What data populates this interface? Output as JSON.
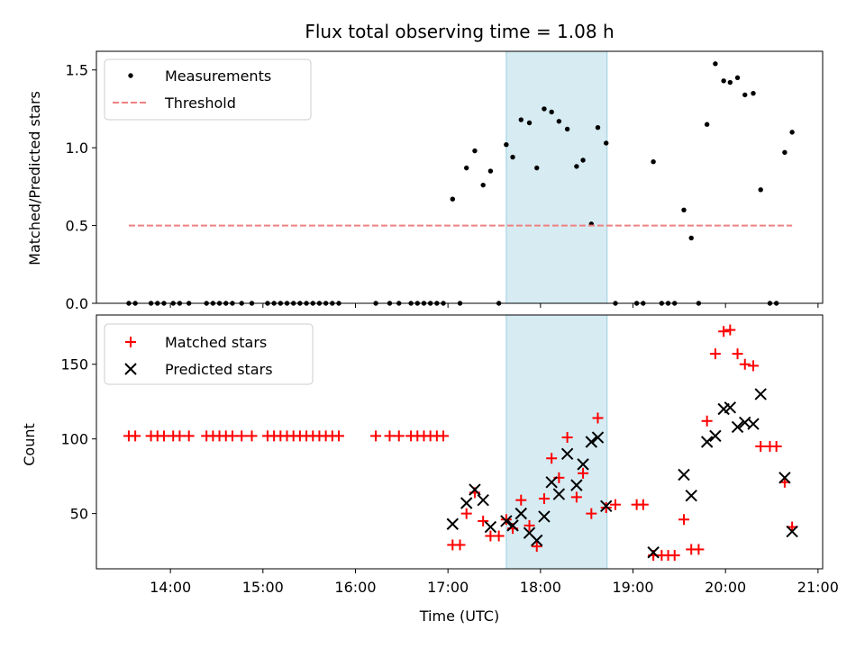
{
  "chart_data": [
    {
      "type": "scatter",
      "title": "Flux total observing time = 1.08 h",
      "xlabel": "",
      "ylabel": "Matched/Predicted stars",
      "xlim": [
        13.2,
        21.05
      ],
      "ylim": [
        0,
        1.62
      ],
      "yticks": [
        "0.0",
        "0.5",
        "1.0",
        "1.5"
      ],
      "shaded_interval": [
        17.63,
        18.72
      ],
      "legend_position": "upper-left",
      "series": [
        {
          "name": "Measurements",
          "marker": "dot",
          "color": "#000000",
          "points": [
            [
              13.55,
              0
            ],
            [
              13.62,
              0
            ],
            [
              13.79,
              0
            ],
            [
              13.86,
              0
            ],
            [
              13.93,
              0
            ],
            [
              14.03,
              0
            ],
            [
              14.1,
              0
            ],
            [
              14.2,
              0
            ],
            [
              14.39,
              0
            ],
            [
              14.46,
              0
            ],
            [
              14.53,
              0
            ],
            [
              14.6,
              0
            ],
            [
              14.67,
              0
            ],
            [
              14.77,
              0
            ],
            [
              14.88,
              0
            ],
            [
              15.05,
              0
            ],
            [
              15.12,
              0
            ],
            [
              15.19,
              0
            ],
            [
              15.26,
              0
            ],
            [
              15.33,
              0
            ],
            [
              15.4,
              0
            ],
            [
              15.47,
              0
            ],
            [
              15.54,
              0
            ],
            [
              15.61,
              0
            ],
            [
              15.68,
              0
            ],
            [
              15.75,
              0
            ],
            [
              15.82,
              0
            ],
            [
              16.22,
              0
            ],
            [
              16.37,
              0
            ],
            [
              16.47,
              0
            ],
            [
              16.6,
              0
            ],
            [
              16.67,
              0
            ],
            [
              16.74,
              0
            ],
            [
              16.81,
              0
            ],
            [
              16.88,
              0
            ],
            [
              16.95,
              0
            ],
            [
              17.13,
              0
            ],
            [
              17.55,
              0
            ],
            [
              18.81,
              0
            ],
            [
              19.04,
              0
            ],
            [
              19.11,
              0
            ],
            [
              19.31,
              0
            ],
            [
              19.38,
              0
            ],
            [
              19.45,
              0
            ],
            [
              19.71,
              0
            ],
            [
              20.48,
              0
            ],
            [
              20.55,
              0
            ],
            [
              17.05,
              0.67
            ],
            [
              17.2,
              0.87
            ],
            [
              17.29,
              0.98
            ],
            [
              17.38,
              0.76
            ],
            [
              17.46,
              0.85
            ],
            [
              17.63,
              1.02
            ],
            [
              17.7,
              0.94
            ],
            [
              17.79,
              1.18
            ],
            [
              17.88,
              1.16
            ],
            [
              17.96,
              0.87
            ],
            [
              18.04,
              1.25
            ],
            [
              18.12,
              1.23
            ],
            [
              18.2,
              1.17
            ],
            [
              18.29,
              1.12
            ],
            [
              18.39,
              0.88
            ],
            [
              18.46,
              0.92
            ],
            [
              18.55,
              0.51
            ],
            [
              18.62,
              1.13
            ],
            [
              18.71,
              1.03
            ],
            [
              19.22,
              0.91
            ],
            [
              19.55,
              0.6
            ],
            [
              19.63,
              0.42
            ],
            [
              19.8,
              1.15
            ],
            [
              19.89,
              1.54
            ],
            [
              19.98,
              1.43
            ],
            [
              20.05,
              1.42
            ],
            [
              20.13,
              1.45
            ],
            [
              20.21,
              1.34
            ],
            [
              20.3,
              1.35
            ],
            [
              20.38,
              0.73
            ],
            [
              20.64,
              0.97
            ],
            [
              20.72,
              1.1
            ]
          ]
        },
        {
          "name": "Threshold",
          "marker": "dashed-line",
          "color": "#f08080",
          "points": [
            [
              13.55,
              0.5
            ],
            [
              20.72,
              0.5
            ]
          ]
        }
      ]
    },
    {
      "type": "scatter",
      "title": "",
      "xlabel": "Time (UTC)",
      "ylabel": "Count",
      "xlim": [
        13.2,
        21.05
      ],
      "ylim": [
        13,
        183
      ],
      "yticks": [
        "50",
        "100",
        "150"
      ],
      "xticks": [
        "14:00",
        "15:00",
        "16:00",
        "17:00",
        "18:00",
        "19:00",
        "20:00",
        "21:00"
      ],
      "shaded_interval": [
        17.63,
        18.72
      ],
      "legend_position": "upper-left",
      "series": [
        {
          "name": "Matched stars",
          "marker": "plus",
          "color": "#ff0000",
          "points": [
            [
              13.55,
              102
            ],
            [
              13.62,
              102
            ],
            [
              13.79,
              102
            ],
            [
              13.86,
              102
            ],
            [
              13.93,
              102
            ],
            [
              14.03,
              102
            ],
            [
              14.1,
              102
            ],
            [
              14.2,
              102
            ],
            [
              14.39,
              102
            ],
            [
              14.46,
              102
            ],
            [
              14.53,
              102
            ],
            [
              14.6,
              102
            ],
            [
              14.67,
              102
            ],
            [
              14.77,
              102
            ],
            [
              14.88,
              102
            ],
            [
              15.05,
              102
            ],
            [
              15.12,
              102
            ],
            [
              15.19,
              102
            ],
            [
              15.26,
              102
            ],
            [
              15.33,
              102
            ],
            [
              15.4,
              102
            ],
            [
              15.47,
              102
            ],
            [
              15.54,
              102
            ],
            [
              15.61,
              102
            ],
            [
              15.68,
              102
            ],
            [
              15.75,
              102
            ],
            [
              15.82,
              102
            ],
            [
              16.22,
              102
            ],
            [
              16.37,
              102
            ],
            [
              16.47,
              102
            ],
            [
              16.6,
              102
            ],
            [
              16.67,
              102
            ],
            [
              16.74,
              102
            ],
            [
              16.81,
              102
            ],
            [
              16.88,
              102
            ],
            [
              16.95,
              102
            ],
            [
              17.05,
              29
            ],
            [
              17.13,
              29
            ],
            [
              17.2,
              50
            ],
            [
              17.29,
              64
            ],
            [
              17.38,
              45
            ],
            [
              17.46,
              35
            ],
            [
              17.55,
              35
            ],
            [
              17.63,
              46
            ],
            [
              17.7,
              40
            ],
            [
              17.79,
              59
            ],
            [
              17.88,
              42
            ],
            [
              17.96,
              28
            ],
            [
              18.04,
              60
            ],
            [
              18.12,
              87
            ],
            [
              18.2,
              74
            ],
            [
              18.29,
              101
            ],
            [
              18.39,
              61
            ],
            [
              18.46,
              77
            ],
            [
              18.55,
              50
            ],
            [
              18.62,
              114
            ],
            [
              18.71,
              54
            ],
            [
              18.81,
              56
            ],
            [
              19.04,
              56
            ],
            [
              19.11,
              56
            ],
            [
              19.22,
              22
            ],
            [
              19.31,
              22
            ],
            [
              19.38,
              22
            ],
            [
              19.45,
              22
            ],
            [
              19.55,
              46
            ],
            [
              19.63,
              26
            ],
            [
              19.71,
              26
            ],
            [
              19.8,
              112
            ],
            [
              19.89,
              157
            ],
            [
              19.98,
              172
            ],
            [
              20.05,
              173
            ],
            [
              20.13,
              157
            ],
            [
              20.21,
              150
            ],
            [
              20.3,
              149
            ],
            [
              20.38,
              95
            ],
            [
              20.48,
              95
            ],
            [
              20.55,
              95
            ],
            [
              20.64,
              71
            ],
            [
              20.72,
              41
            ]
          ]
        },
        {
          "name": "Predicted stars",
          "marker": "x",
          "color": "#000000",
          "points": [
            [
              17.05,
              43
            ],
            [
              17.2,
              57
            ],
            [
              17.29,
              66
            ],
            [
              17.38,
              59
            ],
            [
              17.46,
              41
            ],
            [
              17.63,
              45
            ],
            [
              17.7,
              42
            ],
            [
              17.79,
              50
            ],
            [
              17.88,
              37
            ],
            [
              17.96,
              32
            ],
            [
              18.04,
              48
            ],
            [
              18.12,
              71
            ],
            [
              18.2,
              63
            ],
            [
              18.29,
              90
            ],
            [
              18.39,
              69
            ],
            [
              18.46,
              83
            ],
            [
              18.55,
              98
            ],
            [
              18.62,
              101
            ],
            [
              18.71,
              55
            ],
            [
              19.22,
              24
            ],
            [
              19.55,
              76
            ],
            [
              19.63,
              62
            ],
            [
              19.8,
              98
            ],
            [
              19.89,
              102
            ],
            [
              19.98,
              120
            ],
            [
              20.05,
              121
            ],
            [
              20.13,
              108
            ],
            [
              20.21,
              111
            ],
            [
              20.3,
              110
            ],
            [
              20.38,
              130
            ],
            [
              20.64,
              74
            ],
            [
              20.72,
              38
            ]
          ]
        }
      ]
    }
  ]
}
